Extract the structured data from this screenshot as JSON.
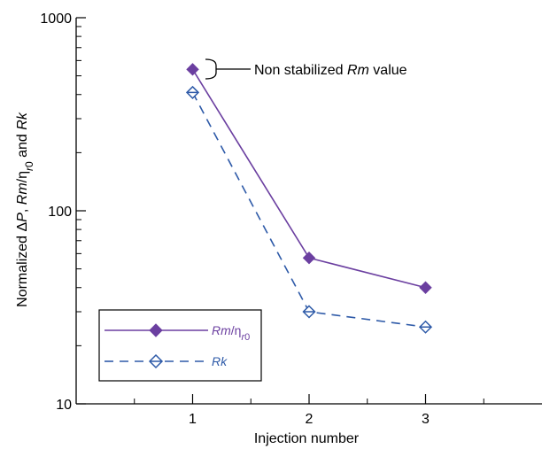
{
  "chart_data": {
    "type": "line",
    "title": "",
    "xlabel": "Injection number",
    "ylabel": "Normalized ΔP, Rm/ηr0 and Rk",
    "yscale": "log",
    "ylim": [
      10,
      1000
    ],
    "xlim": [
      0,
      4
    ],
    "x": [
      1,
      2,
      3
    ],
    "x_ticks": [
      "1",
      "2",
      "3"
    ],
    "y_ticks": [
      "10",
      "100",
      "1000"
    ],
    "grid": false,
    "legend_position": "bottom-left",
    "series": [
      {
        "name": "Rm/ηr0",
        "values": [
          540,
          57,
          40
        ],
        "color": "#6B3FA0",
        "line": "solid",
        "marker": "filled-diamond"
      },
      {
        "name": "Rk",
        "values": [
          410,
          30,
          25
        ],
        "color": "#2E5AA8",
        "line": "dashed",
        "marker": "open-diamond"
      }
    ],
    "annotations": [
      {
        "text": "Non stabilized Rm value",
        "x": 1,
        "y": 540
      }
    ]
  }
}
